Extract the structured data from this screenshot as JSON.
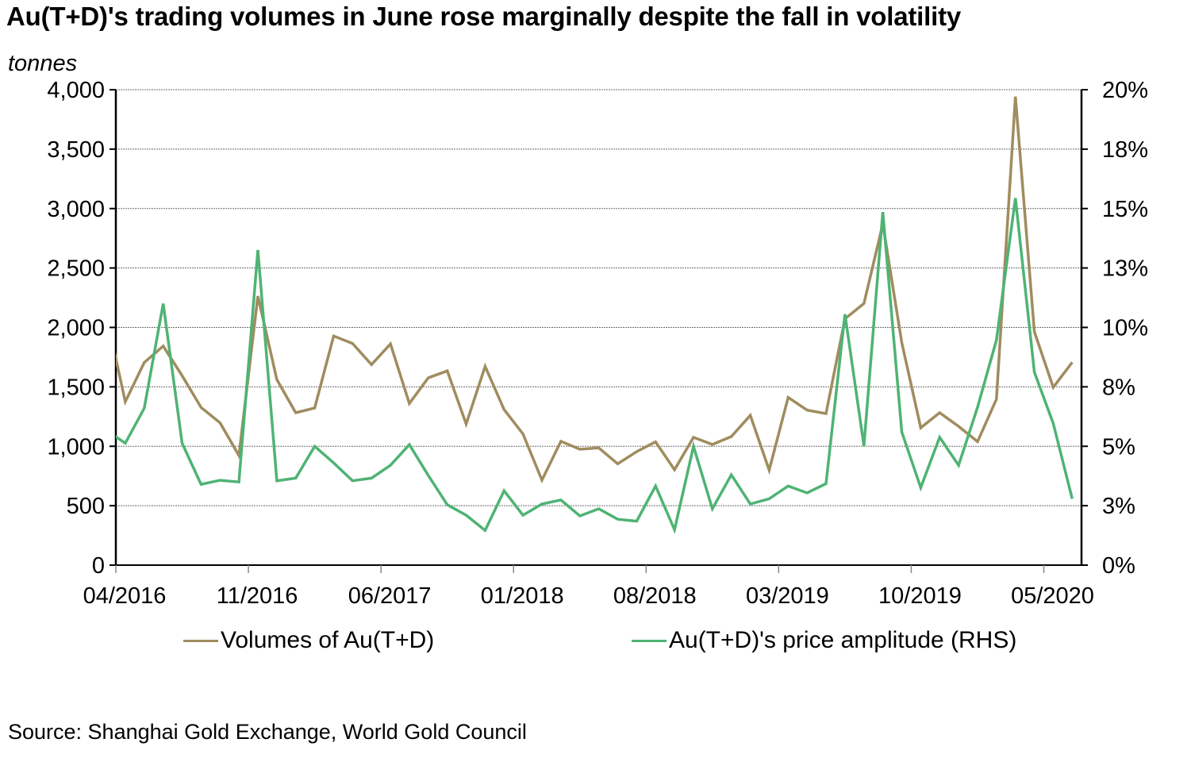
{
  "chart_data": {
    "type": "line",
    "title": "Au(T+D)'s trading volumes in June rose marginally despite the fall in volatility",
    "ylabel": "tonnes",
    "y2label": "",
    "xlabel": "",
    "ylim": [
      0,
      4000
    ],
    "y2lim": [
      0,
      20
    ],
    "y_ticks": [
      0,
      500,
      1000,
      1500,
      2000,
      2500,
      3000,
      3500,
      4000
    ],
    "y_tick_labels": [
      "0",
      "500",
      "1,000",
      "1,500",
      "2,000",
      "2,500",
      "3,000",
      "3,500",
      "4,000"
    ],
    "y2_ticks": [
      0,
      2.5,
      5,
      7.5,
      10,
      12.5,
      15,
      17.5,
      20
    ],
    "y2_tick_labels": [
      "0%",
      "3%",
      "5%",
      "8%",
      "10%",
      "13%",
      "15%",
      "18%",
      "20%"
    ],
    "x_tick_labels": [
      "04/2016",
      "11/2016",
      "06/2017",
      "01/2018",
      "08/2018",
      "03/2019",
      "10/2019",
      "05/2020"
    ],
    "x_tick_categories": [
      "04/2016",
      "11/2016",
      "06/2017",
      "01/2018",
      "08/2018",
      "03/2019",
      "10/2019",
      "05/2020"
    ],
    "grid": "horizontal-dotted",
    "legend_position": "bottom",
    "categories": [
      "03/2016",
      "04/2016",
      "05/2016",
      "06/2016",
      "07/2016",
      "08/2016",
      "09/2016",
      "10/2016",
      "11/2016",
      "12/2016",
      "01/2017",
      "02/2017",
      "03/2017",
      "04/2017",
      "05/2017",
      "06/2017",
      "07/2017",
      "08/2017",
      "09/2017",
      "10/2017",
      "11/2017",
      "12/2017",
      "01/2018",
      "02/2018",
      "03/2018",
      "04/2018",
      "05/2018",
      "06/2018",
      "07/2018",
      "08/2018",
      "09/2018",
      "10/2018",
      "11/2018",
      "12/2018",
      "01/2019",
      "02/2019",
      "03/2019",
      "04/2019",
      "05/2019",
      "06/2019",
      "07/2019",
      "08/2019",
      "09/2019",
      "10/2019",
      "11/2019",
      "12/2019",
      "01/2020",
      "02/2020",
      "03/2020",
      "04/2020",
      "05/2020",
      "06/2020"
    ],
    "series": [
      {
        "name": "Volumes of Au(T+D)",
        "axis": "left",
        "unit": "tonnes",
        "color": "#a08c5f",
        "values": [
          2100,
          1375,
          1705,
          1843,
          1594,
          1327,
          1197,
          922,
          2264,
          1561,
          1282,
          1322,
          1928,
          1865,
          1687,
          1861,
          1360,
          1576,
          1634,
          1187,
          1672,
          1309,
          1104,
          715,
          1042,
          975,
          986,
          853,
          955,
          1037,
          803,
          1075,
          1015,
          1082,
          1260,
          799,
          1411,
          1304,
          1275,
          2072,
          2201,
          2870,
          1872,
          1155,
          1282,
          1167,
          1039,
          1396,
          3942,
          1963,
          1495,
          1707
        ]
      },
      {
        "name": "Au(T+D)'s price amplitude (RHS)",
        "axis": "right",
        "unit": "%",
        "color": "#4fb374",
        "values": [
          5.67,
          5.13,
          6.6,
          11.0,
          5.13,
          3.4,
          3.57,
          3.5,
          13.26,
          3.55,
          3.66,
          5.0,
          4.3,
          3.55,
          3.66,
          4.2,
          5.07,
          3.77,
          2.54,
          2.1,
          1.46,
          3.13,
          2.1,
          2.57,
          2.74,
          2.07,
          2.37,
          1.93,
          1.85,
          3.33,
          1.49,
          5.0,
          2.37,
          3.8,
          2.57,
          2.79,
          3.33,
          3.04,
          3.43,
          10.55,
          5.02,
          14.85,
          5.6,
          3.26,
          5.38,
          4.2,
          6.64,
          9.47,
          15.44,
          8.12,
          5.96,
          2.79
        ]
      }
    ],
    "source": "Source: Shanghai Gold Exchange, World Gold Council"
  },
  "legend": {
    "items": [
      {
        "label": "Volumes of Au(T+D)",
        "color": "#a08c5f"
      },
      {
        "label": "Au(T+D)'s price amplitude (RHS)",
        "color": "#4fb374"
      }
    ]
  }
}
